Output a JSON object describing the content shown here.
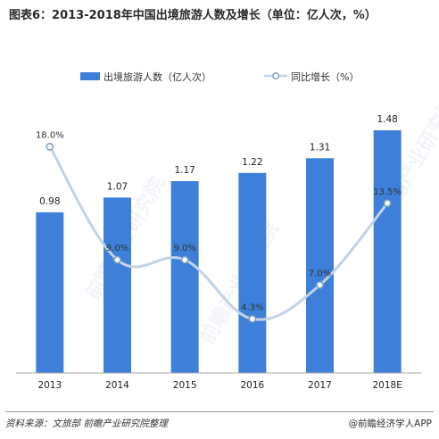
{
  "title": "图表6：2013-2018年中国出境旅游人数及增长（单位：亿人次，%）",
  "legend": {
    "bar_label": "出境旅游人数（亿人次）",
    "line_label": "同比增长（%）"
  },
  "footer": {
    "source": "资料来源：文旅部  前瞻产业研究院整理",
    "brand": "@前瞻经济学人APP"
  },
  "watermark": "前瞻产业研究院",
  "colors": {
    "bar": "#3d7fd9",
    "line": "#c3d3e6",
    "marker": "#7f9fc4"
  },
  "chart_data": {
    "type": "bar",
    "categories": [
      "2013",
      "2014",
      "2015",
      "2016",
      "2017",
      "2018E"
    ],
    "series": [
      {
        "name": "出境旅游人数（亿人次）",
        "type": "bar",
        "values": [
          0.98,
          1.07,
          1.17,
          1.22,
          1.31,
          1.48
        ],
        "labels": [
          "0.98",
          "1.07",
          "1.17",
          "1.22",
          "1.31",
          "1.48"
        ]
      },
      {
        "name": "同比增长（%）",
        "type": "line",
        "values": [
          18.0,
          9.0,
          9.0,
          4.3,
          7.0,
          13.5
        ],
        "labels": [
          "18.0%",
          "9.0%",
          "9.0%",
          "4.3%",
          "7.0%",
          "13.5%"
        ]
      }
    ],
    "bar_ylim": [
      0,
      1.6
    ],
    "line_ylim": [
      0,
      22
    ]
  }
}
